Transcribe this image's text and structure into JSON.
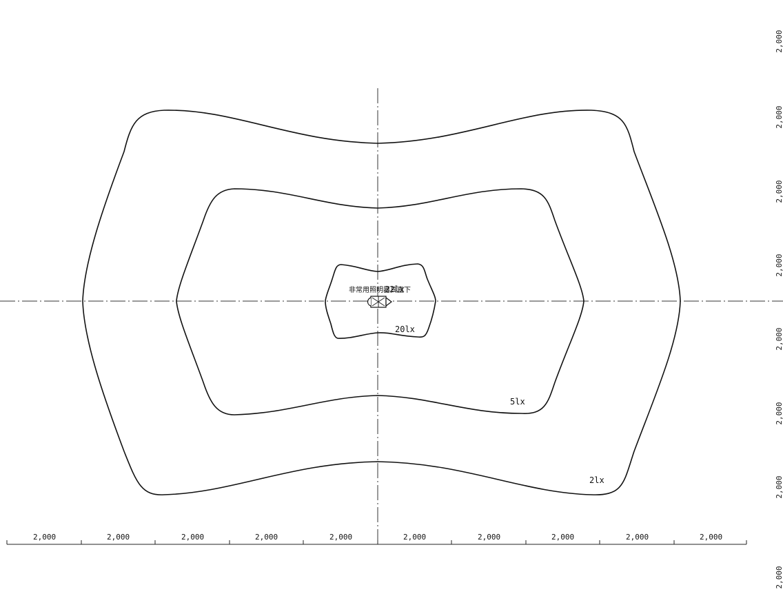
{
  "contours": [
    {
      "id": "outer",
      "label": "2lx"
    },
    {
      "id": "middle",
      "label": "5lx"
    },
    {
      "id": "inner",
      "label": "20lx"
    }
  ],
  "fixture": {
    "label": "非常用照明器具直下",
    "value": "22lx",
    "icon": "luminaire-icon"
  },
  "horizontal_dimensions": [
    "2,000",
    "2,000",
    "2,000",
    "2,000",
    "2,000",
    "2,000",
    "2,000",
    "2,000",
    "2,000",
    "2,000"
  ],
  "vertical_dimensions": [
    "2,000",
    "2,000",
    "2,000",
    "2,000",
    "2,000",
    "2,000",
    "2,000",
    "2,000"
  ]
}
